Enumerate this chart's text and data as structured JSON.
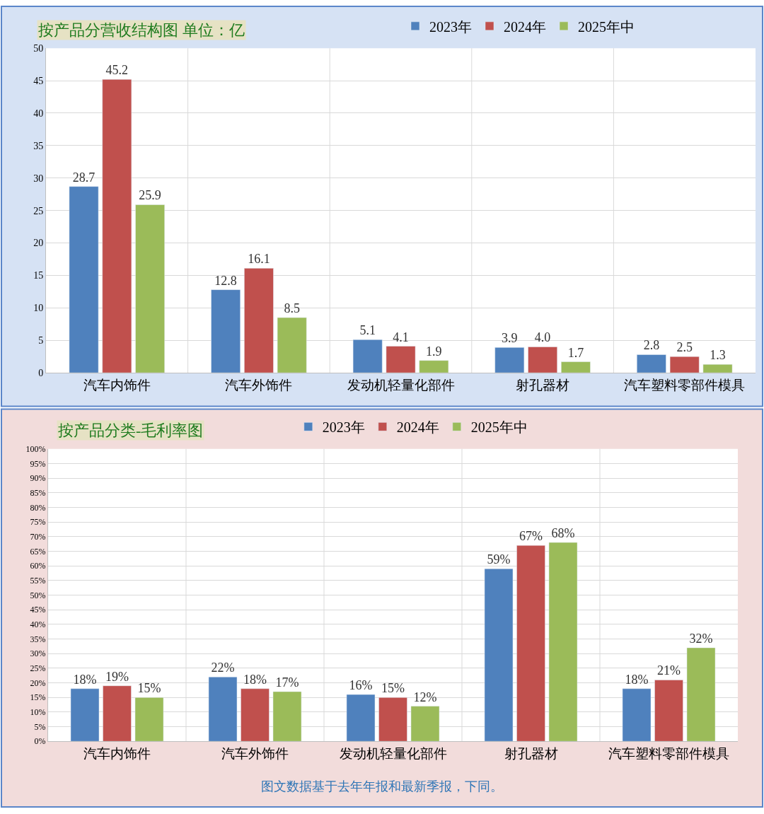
{
  "chart_data": [
    {
      "type": "bar",
      "title": "按产品分营收结构图 单位：亿",
      "categories": [
        "汽车内饰件",
        "汽车外饰件",
        "发动机轻量化部件",
        "射孔器材",
        "汽车塑料零部件模具"
      ],
      "series": [
        {
          "name": "2023年",
          "color": "#4f81bd",
          "values": [
            28.7,
            12.8,
            5.1,
            3.9,
            2.8
          ],
          "value_labels": [
            "28.7",
            "12.8",
            "5.1",
            "3.9",
            "2.8"
          ]
        },
        {
          "name": "2024年",
          "color": "#c0504d",
          "values": [
            45.2,
            16.1,
            4.1,
            4.0,
            2.5
          ],
          "value_labels": [
            "45.2",
            "16.1",
            "4.1",
            "4.0",
            "2.5"
          ]
        },
        {
          "name": "2025年中",
          "color": "#9bbb59",
          "values": [
            25.9,
            8.5,
            1.9,
            1.7,
            1.3
          ],
          "value_labels": [
            "25.9",
            "8.5",
            "1.9",
            "1.7",
            "1.3"
          ]
        }
      ],
      "ylim": [
        0,
        50
      ],
      "yticks": [
        0,
        5,
        10,
        15,
        20,
        25,
        30,
        35,
        40,
        45,
        50
      ],
      "grid": true,
      "legend": "top"
    },
    {
      "type": "bar",
      "title": "按产品分类-毛利率图",
      "categories": [
        "汽车内饰件",
        "汽车外饰件",
        "发动机轻量化部件",
        "射孔器材",
        "汽车塑料零部件模具"
      ],
      "series": [
        {
          "name": "2023年",
          "color": "#4f81bd",
          "values": [
            18,
            22,
            16,
            59,
            18
          ],
          "value_labels": [
            "18%",
            "22%",
            "16%",
            "59%",
            "18%"
          ]
        },
        {
          "name": "2024年",
          "color": "#c0504d",
          "values": [
            19,
            18,
            15,
            67,
            21
          ],
          "value_labels": [
            "19%",
            "18%",
            "15%",
            "67%",
            "21%"
          ]
        },
        {
          "name": "2025年中",
          "color": "#9bbb59",
          "values": [
            15,
            17,
            12,
            68,
            32
          ],
          "value_labels": [
            "15%",
            "17%",
            "12%",
            "68%",
            "32%"
          ]
        }
      ],
      "ylim": [
        0,
        100
      ],
      "yticks": [
        {
          "value": 0,
          "label": "0%"
        },
        {
          "value": 5,
          "label": "5%"
        },
        {
          "value": 10,
          "label": "10%"
        },
        {
          "value": 15,
          "label": "15%"
        },
        {
          "value": 20,
          "label": "20%"
        },
        {
          "value": 25,
          "label": "25%"
        },
        {
          "value": 30,
          "label": "30%"
        },
        {
          "value": 35,
          "label": "35%"
        },
        {
          "value": 40,
          "label": "40%"
        },
        {
          "value": 45,
          "label": "45%"
        },
        {
          "value": 50,
          "label": "50%"
        },
        {
          "value": 55,
          "label": "55%"
        },
        {
          "value": 60,
          "label": "60%"
        },
        {
          "value": 65,
          "label": "65%"
        },
        {
          "value": 70,
          "label": "70%"
        },
        {
          "value": 75,
          "label": "75%"
        },
        {
          "value": 80,
          "label": "80%"
        },
        {
          "value": 85,
          "label": "85%"
        },
        {
          "value": 90,
          "label": "90%"
        },
        {
          "value": 95,
          "label": "95%"
        },
        {
          "value": 100,
          "label": "100%"
        }
      ],
      "grid": true,
      "legend": "top",
      "annotations": [
        "图文数据基于去年年报和最新季报，下同。"
      ]
    }
  ]
}
